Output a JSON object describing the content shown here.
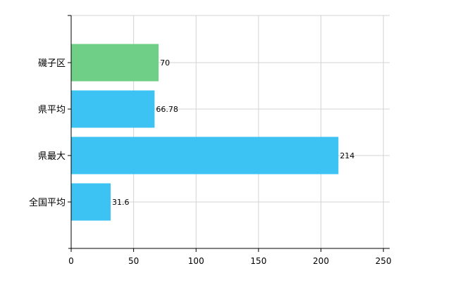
{
  "chart_data": {
    "type": "bar",
    "orientation": "horizontal",
    "title": "",
    "xlabel": "",
    "ylabel": "",
    "categories": [
      "磯子区",
      "県平均",
      "県最大",
      "全国平均"
    ],
    "values": [
      70,
      66.78,
      214,
      31.6
    ],
    "value_labels": [
      "70",
      "66.78",
      "214",
      "31.6"
    ],
    "bar_colors": [
      "#6fcf87",
      "#3cc3f3",
      "#3cc3f3",
      "#3cc3f3"
    ],
    "xlim": [
      0,
      255
    ],
    "x_ticks": [
      0,
      50,
      100,
      150,
      200,
      250
    ],
    "x_tick_labels": [
      "0",
      "50",
      "100",
      "150",
      "200",
      "250"
    ],
    "grid": true,
    "legend": "none",
    "colors": {
      "grid": "#d3d3d3",
      "axis": "#000000"
    }
  }
}
